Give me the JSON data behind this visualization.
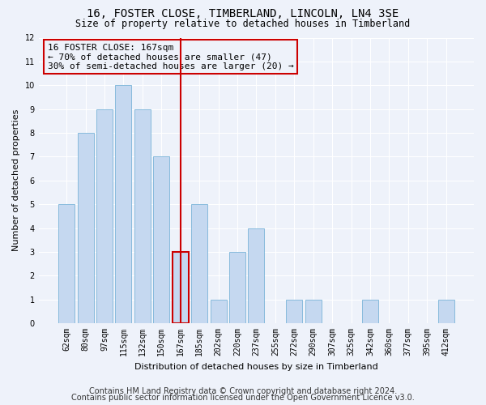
{
  "title": "16, FOSTER CLOSE, TIMBERLAND, LINCOLN, LN4 3SE",
  "subtitle": "Size of property relative to detached houses in Timberland",
  "xlabel": "Distribution of detached houses by size in Timberland",
  "ylabel": "Number of detached properties",
  "categories": [
    "62sqm",
    "80sqm",
    "97sqm",
    "115sqm",
    "132sqm",
    "150sqm",
    "167sqm",
    "185sqm",
    "202sqm",
    "220sqm",
    "237sqm",
    "255sqm",
    "272sqm",
    "290sqm",
    "307sqm",
    "325sqm",
    "342sqm",
    "360sqm",
    "377sqm",
    "395sqm",
    "412sqm"
  ],
  "values": [
    5,
    8,
    9,
    10,
    9,
    7,
    3,
    5,
    1,
    3,
    4,
    0,
    1,
    1,
    0,
    0,
    1,
    0,
    0,
    0,
    1
  ],
  "bar_color": "#c5d8f0",
  "bar_edgecolor": "#7ab4d8",
  "highlight_index": 6,
  "highlight_line_color": "#cc0000",
  "annotation_line1": "16 FOSTER CLOSE: 167sqm",
  "annotation_line2": "← 70% of detached houses are smaller (47)",
  "annotation_line3": "30% of semi-detached houses are larger (20) →",
  "annotation_box_edgecolor": "#cc0000",
  "ylim": [
    0,
    12
  ],
  "yticks": [
    0,
    1,
    2,
    3,
    4,
    5,
    6,
    7,
    8,
    9,
    10,
    11,
    12
  ],
  "footer_line1": "Contains HM Land Registry data © Crown copyright and database right 2024.",
  "footer_line2": "Contains public sector information licensed under the Open Government Licence v3.0.",
  "background_color": "#eef2fa",
  "grid_color": "#ffffff",
  "title_fontsize": 10,
  "subtitle_fontsize": 8.5,
  "xlabel_fontsize": 8,
  "ylabel_fontsize": 8,
  "tick_fontsize": 7,
  "annotation_fontsize": 8,
  "footer_fontsize": 7
}
